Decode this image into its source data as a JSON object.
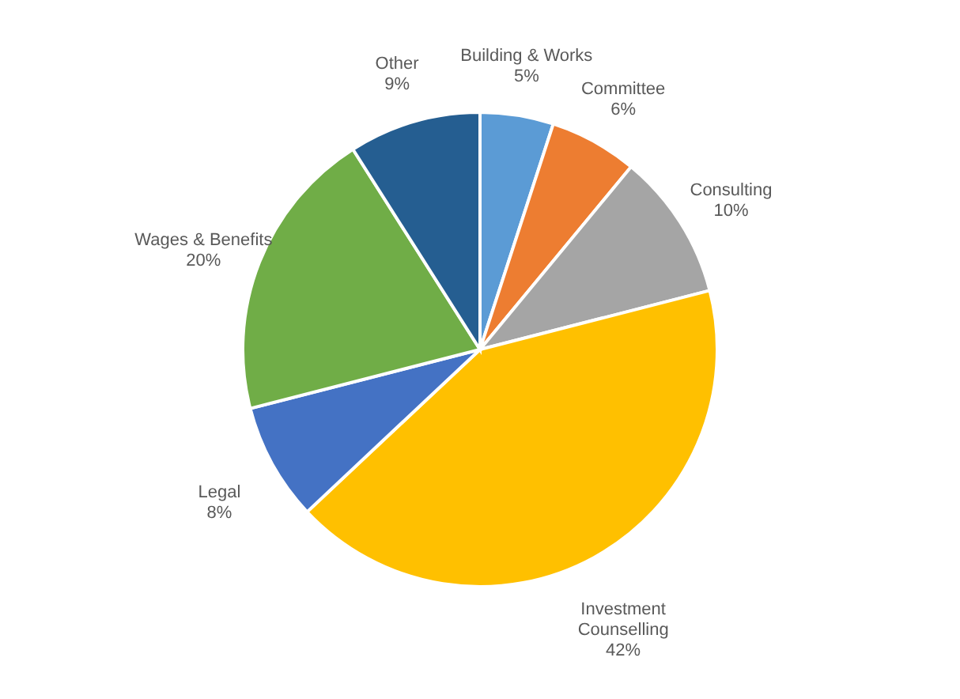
{
  "chart_data": {
    "type": "pie",
    "categories": [
      "Building & Works",
      "Committee",
      "Consulting",
      "Investment Counselling",
      "Legal",
      "Wages & Benefits",
      "Other"
    ],
    "values": [
      5,
      6,
      10,
      42,
      8,
      20,
      9
    ],
    "value_labels": [
      "5%",
      "6%",
      "10%",
      "42%",
      "8%",
      "20%",
      "9%"
    ],
    "colors": [
      "#5b9bd5",
      "#ed7d31",
      "#a5a5a5",
      "#ffc000",
      "#4472c4",
      "#70ad47",
      "#255e91"
    ],
    "legend": false
  }
}
